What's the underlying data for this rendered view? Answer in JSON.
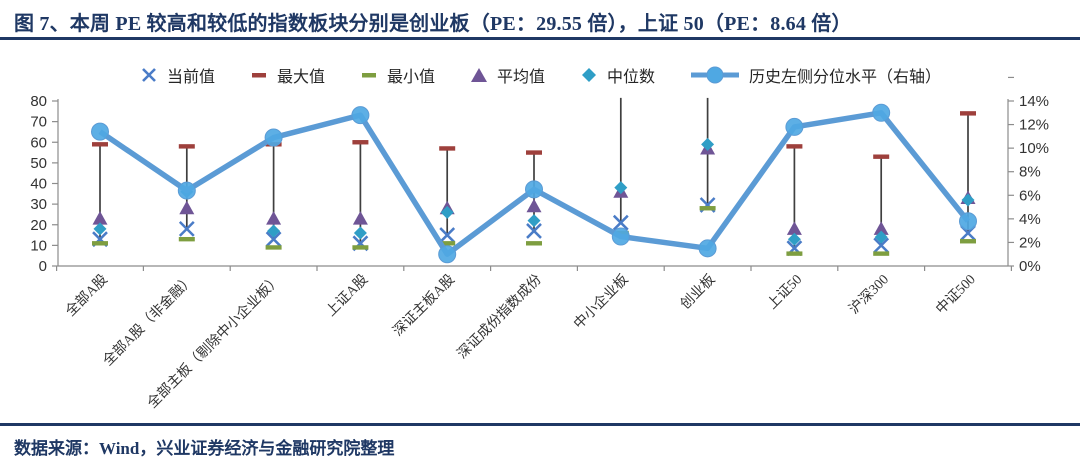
{
  "title": "图 7、本周 PE 较高和较低的指数板块分别是创业板（PE：29.55 倍），上证 50（PE：8.64 倍）",
  "footer": {
    "source": "数据来源：Wind，兴业证券经济与金融研究院整理"
  },
  "legend": [
    {
      "key": "current",
      "marker": "x-marker",
      "label": "当前值"
    },
    {
      "key": "max",
      "marker": "red-dash-marker",
      "label": "最大值"
    },
    {
      "key": "min",
      "marker": "green-dash-marker",
      "label": "最小值"
    },
    {
      "key": "avg",
      "marker": "triangle-marker",
      "label": "平均值"
    },
    {
      "key": "median",
      "marker": "diamond-marker",
      "label": "中位数"
    },
    {
      "key": "pct",
      "marker": "line-circle-marker",
      "label": "历史左侧分位水平（右轴）"
    }
  ],
  "colors": {
    "current": "#4A7CC7",
    "max": "#9E403C",
    "min": "#7E9E40",
    "avg": "#6F5596",
    "median": "#2F9EC6",
    "line": "#5B9BD5",
    "line_fill": "#4FA8E3",
    "hilo": "#3F3F3F",
    "axis": "#8C8C8C",
    "tick_text": "#333333",
    "title": "#1F3864"
  },
  "chart_data": {
    "type": "line",
    "subtype": "hi-lo range with stat markers (left axis) + percentile line (right axis)",
    "legend_position": "top",
    "grid": false,
    "categories": [
      "全部A股",
      "全部A股（非金融）",
      "全部主板（剔除中小企业板）",
      "上证A股",
      "深证主板A股",
      "深证成份指数成份",
      "中小企业板",
      "创业板",
      "上证50",
      "沪深300",
      "中证500"
    ],
    "series": [
      {
        "name": "当前值",
        "marker": "x",
        "axis": "left",
        "values": [
          13,
          18,
          13,
          11,
          15,
          17,
          21,
          29.55,
          8.64,
          10,
          16
        ]
      },
      {
        "name": "最大值",
        "marker": "dash",
        "axis": "left",
        "values": [
          59,
          58,
          59,
          60,
          57,
          55,
          null,
          null,
          58,
          53,
          74
        ],
        "note": "null = max above axis top (line clipped at 80)"
      },
      {
        "name": "最小值",
        "marker": "dash",
        "axis": "left",
        "values": [
          11,
          13,
          9,
          9,
          11,
          11,
          16,
          28,
          6,
          6,
          12
        ]
      },
      {
        "name": "平均值",
        "marker": "triangle",
        "axis": "left",
        "values": [
          23,
          28,
          23,
          23,
          28,
          29,
          36,
          57,
          18,
          18,
          33
        ]
      },
      {
        "name": "中位数",
        "marker": "diamond",
        "axis": "left",
        "values": [
          18,
          36,
          17,
          16,
          26,
          22,
          38,
          59,
          13,
          14,
          32
        ]
      },
      {
        "name": "历史左侧分位水平（右轴）",
        "marker": "circle-line",
        "axis": "right",
        "values": [
          11.4,
          6.4,
          10.9,
          12.8,
          1.0,
          6.5,
          2.5,
          1.5,
          11.8,
          13.0,
          3.8
        ]
      }
    ],
    "left_axis": {
      "min": 0,
      "max": 80,
      "step": 10,
      "ticks": [
        "0",
        "10",
        "20",
        "30",
        "40",
        "50",
        "60",
        "70",
        "80"
      ]
    },
    "right_axis": {
      "min": 0,
      "max": 14,
      "step": 2,
      "suffix": "%",
      "ticks": [
        "0%",
        "2%",
        "4%",
        "6%",
        "8%",
        "10%",
        "12%",
        "14%"
      ]
    },
    "clipped_hilo_top_value": 81.5
  }
}
